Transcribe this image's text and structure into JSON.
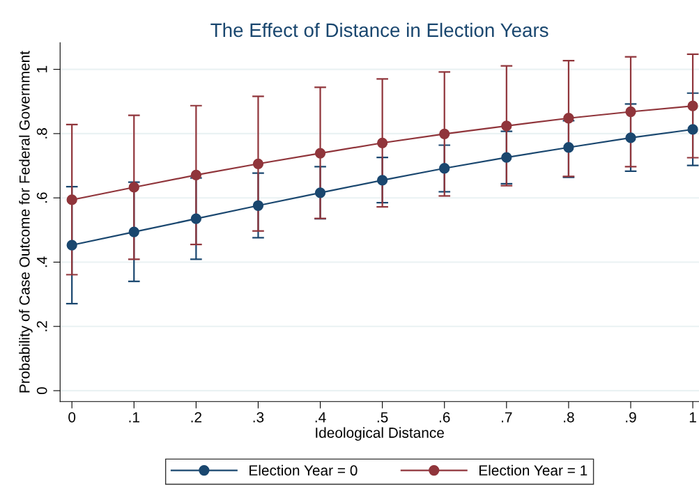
{
  "chart_data": {
    "type": "line",
    "title": "The Effect of Distance in Election Years",
    "xlabel": "Ideological Distance",
    "ylabel": "Probability of Case Outcome for Federal Government",
    "x": [
      0,
      0.1,
      0.2,
      0.3,
      0.4,
      0.5,
      0.6,
      0.7,
      0.8,
      0.9,
      1
    ],
    "series": [
      {
        "name": "Election Year = 0",
        "color": "#1a476f",
        "values": [
          0.453,
          0.494,
          0.535,
          0.576,
          0.616,
          0.655,
          0.692,
          0.726,
          0.757,
          0.787,
          0.813
        ],
        "errors": [
          [
            0.271,
            0.635
          ],
          [
            0.34,
            0.649
          ],
          [
            0.409,
            0.662
          ],
          [
            0.476,
            0.677
          ],
          [
            0.535,
            0.697
          ],
          [
            0.585,
            0.726
          ],
          [
            0.619,
            0.764
          ],
          [
            0.644,
            0.807
          ],
          [
            0.664,
            0.84
          ],
          [
            0.683,
            0.892
          ],
          [
            0.701,
            0.926
          ]
        ]
      },
      {
        "name": "Election Year = 1",
        "color": "#90353b",
        "values": [
          0.594,
          0.633,
          0.671,
          0.706,
          0.739,
          0.771,
          0.799,
          0.824,
          0.848,
          0.868,
          0.886
        ],
        "errors": [
          [
            0.361,
            0.828
          ],
          [
            0.409,
            0.857
          ],
          [
            0.455,
            0.887
          ],
          [
            0.497,
            0.916
          ],
          [
            0.536,
            0.944
          ],
          [
            0.572,
            0.97
          ],
          [
            0.606,
            0.992
          ],
          [
            0.638,
            1.011
          ],
          [
            0.667,
            1.027
          ],
          [
            0.697,
            1.039
          ],
          [
            0.725,
            1.047
          ]
        ]
      }
    ],
    "xlim": [
      -0.019,
      1.01
    ],
    "ylim": [
      -0.034,
      1.083
    ],
    "xticks": [
      {
        "value": 0,
        "label": "0"
      },
      {
        "value": 0.1,
        "label": ".1"
      },
      {
        "value": 0.2,
        "label": ".2"
      },
      {
        "value": 0.3,
        "label": ".3"
      },
      {
        "value": 0.4,
        "label": ".4"
      },
      {
        "value": 0.5,
        "label": ".5"
      },
      {
        "value": 0.6,
        "label": ".6"
      },
      {
        "value": 0.7,
        "label": ".7"
      },
      {
        "value": 0.8,
        "label": ".8"
      },
      {
        "value": 0.9,
        "label": ".9"
      },
      {
        "value": 1,
        "label": "1"
      }
    ],
    "yticks": [
      {
        "value": 0,
        "label": "0"
      },
      {
        "value": 0.2,
        "label": ".2"
      },
      {
        "value": 0.4,
        "label": ".4"
      },
      {
        "value": 0.6,
        "label": ".6"
      },
      {
        "value": 0.8,
        "label": ".8"
      },
      {
        "value": 1,
        "label": "1"
      }
    ],
    "grid": "y",
    "legend": "bottom",
    "marker": "circle",
    "line_style": "solid"
  }
}
